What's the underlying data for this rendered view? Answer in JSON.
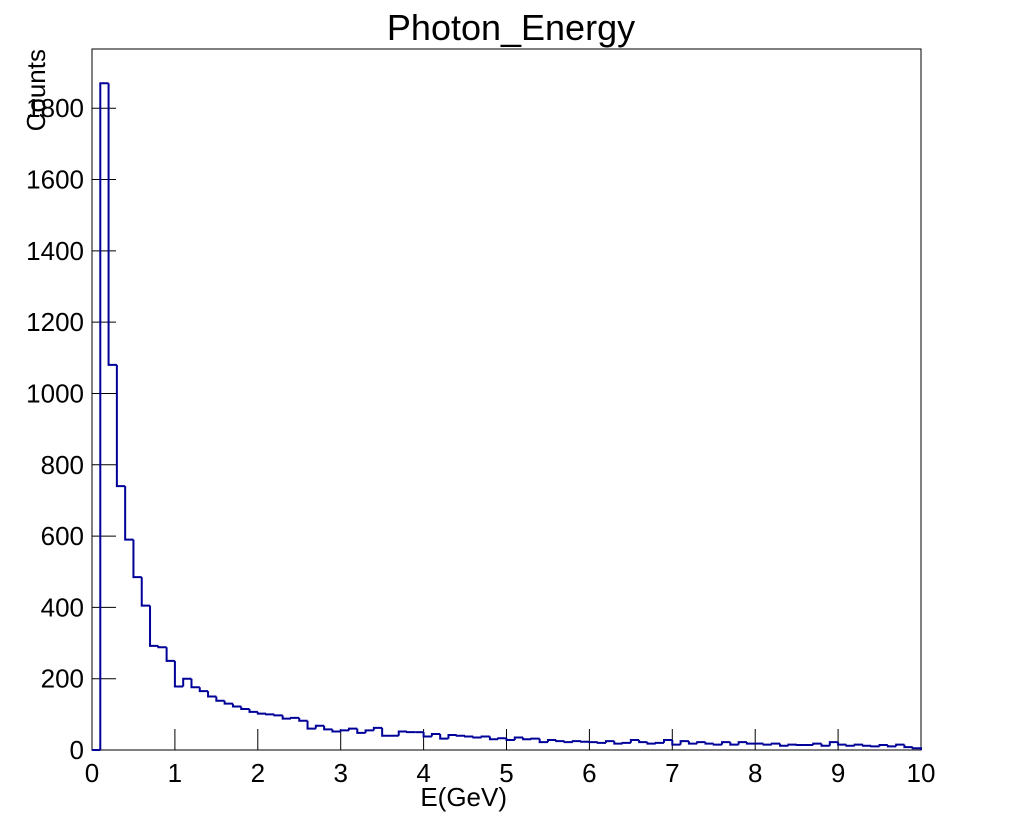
{
  "chart_data": {
    "type": "histogram",
    "title": "Photon_Energy",
    "x_label": "E(GeV)",
    "y_label": "Counts",
    "bins": [
      0,
      0.1,
      0.2,
      0.3,
      0.4,
      0.5,
      0.6,
      0.7,
      0.8,
      0.9,
      1,
      1.1,
      1.2,
      1.3,
      1.4,
      1.5,
      1.6,
      1.7,
      1.8,
      1.9,
      2,
      2.1,
      2.2,
      2.3,
      2.4,
      2.5,
      2.6,
      2.7,
      2.8,
      2.9,
      3,
      3.1,
      3.2,
      3.3,
      3.4,
      3.5,
      3.6,
      3.7,
      3.8,
      3.9,
      4,
      4.1,
      4.2,
      4.3,
      4.4,
      4.5,
      4.6,
      4.7,
      4.8,
      4.9,
      5,
      5.1,
      5.2,
      5.3,
      5.4,
      5.5,
      5.6,
      5.7,
      5.8,
      5.9,
      6,
      6.1,
      6.2,
      6.3,
      6.4,
      6.5,
      6.6,
      6.7,
      6.8,
      6.9,
      7,
      7.1,
      7.2,
      7.3,
      7.4,
      7.5,
      7.6,
      7.7,
      7.8,
      7.9,
      8,
      8.1,
      8.2,
      8.3,
      8.4,
      8.5,
      8.6,
      8.7,
      8.8,
      8.9,
      9,
      9.1,
      9.2,
      9.3,
      9.4,
      9.5,
      9.6,
      9.7,
      9.8,
      9.9,
      10
    ],
    "values": [
      0,
      1870,
      1080,
      740,
      590,
      485,
      405,
      292,
      288,
      250,
      178,
      200,
      176,
      165,
      150,
      138,
      130,
      122,
      115,
      107,
      102,
      100,
      97,
      88,
      90,
      82,
      60,
      68,
      58,
      52,
      55,
      60,
      48,
      55,
      62,
      40,
      40,
      52,
      50,
      50,
      38,
      45,
      32,
      42,
      40,
      38,
      35,
      38,
      30,
      33,
      28,
      35,
      30,
      32,
      22,
      28,
      25,
      22,
      25,
      23,
      22,
      20,
      25,
      18,
      20,
      28,
      22,
      18,
      20,
      28,
      15,
      25,
      18,
      22,
      18,
      15,
      22,
      15,
      22,
      18,
      18,
      15,
      18,
      12,
      15,
      14,
      14,
      18,
      12,
      22,
      15,
      12,
      15,
      12,
      10,
      14,
      10,
      15,
      8,
      5
    ],
    "color": "#000099",
    "xlim": [
      0,
      10
    ],
    "ylim": [
      0,
      1966
    ],
    "xticks": [
      0,
      1,
      2,
      3,
      4,
      5,
      6,
      7,
      8,
      9,
      10
    ],
    "yticks": [
      0,
      200,
      400,
      600,
      800,
      1000,
      1200,
      1400,
      1600,
      1800
    ]
  }
}
